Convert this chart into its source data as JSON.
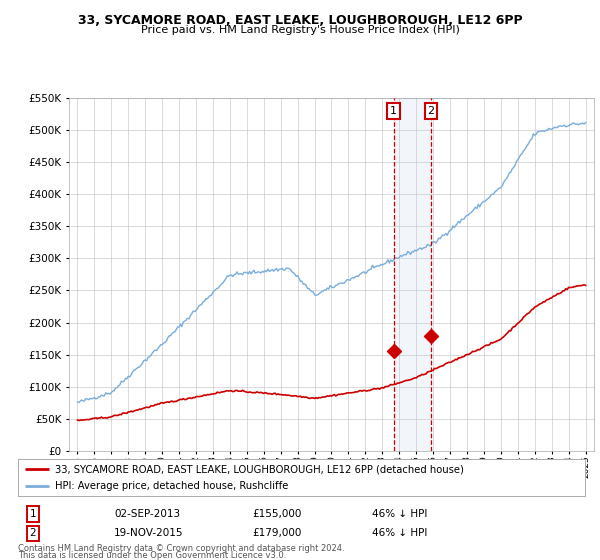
{
  "title1": "33, SYCAMORE ROAD, EAST LEAKE, LOUGHBOROUGH, LE12 6PP",
  "title2": "Price paid vs. HM Land Registry's House Price Index (HPI)",
  "legend_line1": "33, SYCAMORE ROAD, EAST LEAKE, LOUGHBOROUGH, LE12 6PP (detached house)",
  "legend_line2": "HPI: Average price, detached house, Rushcliffe",
  "sale1_label": "1",
  "sale1_date": "02-SEP-2013",
  "sale1_price": "£155,000",
  "sale1_hpi": "46% ↓ HPI",
  "sale1_year": 2013.67,
  "sale1_value": 155000,
  "sale2_label": "2",
  "sale2_date": "19-NOV-2015",
  "sale2_price": "£179,000",
  "sale2_hpi": "46% ↓ HPI",
  "sale2_year": 2015.88,
  "sale2_value": 179000,
  "footer1": "Contains HM Land Registry data © Crown copyright and database right 2024.",
  "footer2": "This data is licensed under the Open Government Licence v3.0.",
  "red_color": "#cc0000",
  "blue_color": "#7aaddb",
  "background_color": "#ffffff",
  "grid_color": "#cccccc",
  "ylim": [
    0,
    550000
  ],
  "xlim_min": 1994.5,
  "xlim_max": 2025.5
}
